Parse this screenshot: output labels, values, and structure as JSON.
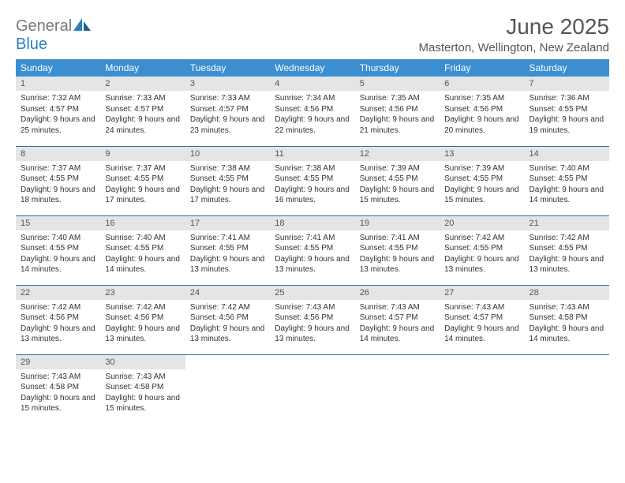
{
  "brand": {
    "part1": "General",
    "part2": "Blue"
  },
  "title": "June 2025",
  "location": "Masterton, Wellington, New Zealand",
  "colors": {
    "header_bg": "#3b8fd1",
    "header_text": "#ffffff",
    "daynum_bg": "#e5e5e5",
    "border": "#2a6fa5",
    "logo_gray": "#7a7a7a",
    "logo_blue": "#2a7fbf"
  },
  "days_of_week": [
    "Sunday",
    "Monday",
    "Tuesday",
    "Wednesday",
    "Thursday",
    "Friday",
    "Saturday"
  ],
  "weeks": [
    [
      {
        "n": "1",
        "sunrise": "7:32 AM",
        "sunset": "4:57 PM",
        "daylight": "9 hours and 25 minutes."
      },
      {
        "n": "2",
        "sunrise": "7:33 AM",
        "sunset": "4:57 PM",
        "daylight": "9 hours and 24 minutes."
      },
      {
        "n": "3",
        "sunrise": "7:33 AM",
        "sunset": "4:57 PM",
        "daylight": "9 hours and 23 minutes."
      },
      {
        "n": "4",
        "sunrise": "7:34 AM",
        "sunset": "4:56 PM",
        "daylight": "9 hours and 22 minutes."
      },
      {
        "n": "5",
        "sunrise": "7:35 AM",
        "sunset": "4:56 PM",
        "daylight": "9 hours and 21 minutes."
      },
      {
        "n": "6",
        "sunrise": "7:35 AM",
        "sunset": "4:56 PM",
        "daylight": "9 hours and 20 minutes."
      },
      {
        "n": "7",
        "sunrise": "7:36 AM",
        "sunset": "4:55 PM",
        "daylight": "9 hours and 19 minutes."
      }
    ],
    [
      {
        "n": "8",
        "sunrise": "7:37 AM",
        "sunset": "4:55 PM",
        "daylight": "9 hours and 18 minutes."
      },
      {
        "n": "9",
        "sunrise": "7:37 AM",
        "sunset": "4:55 PM",
        "daylight": "9 hours and 17 minutes."
      },
      {
        "n": "10",
        "sunrise": "7:38 AM",
        "sunset": "4:55 PM",
        "daylight": "9 hours and 17 minutes."
      },
      {
        "n": "11",
        "sunrise": "7:38 AM",
        "sunset": "4:55 PM",
        "daylight": "9 hours and 16 minutes."
      },
      {
        "n": "12",
        "sunrise": "7:39 AM",
        "sunset": "4:55 PM",
        "daylight": "9 hours and 15 minutes."
      },
      {
        "n": "13",
        "sunrise": "7:39 AM",
        "sunset": "4:55 PM",
        "daylight": "9 hours and 15 minutes."
      },
      {
        "n": "14",
        "sunrise": "7:40 AM",
        "sunset": "4:55 PM",
        "daylight": "9 hours and 14 minutes."
      }
    ],
    [
      {
        "n": "15",
        "sunrise": "7:40 AM",
        "sunset": "4:55 PM",
        "daylight": "9 hours and 14 minutes."
      },
      {
        "n": "16",
        "sunrise": "7:40 AM",
        "sunset": "4:55 PM",
        "daylight": "9 hours and 14 minutes."
      },
      {
        "n": "17",
        "sunrise": "7:41 AM",
        "sunset": "4:55 PM",
        "daylight": "9 hours and 13 minutes."
      },
      {
        "n": "18",
        "sunrise": "7:41 AM",
        "sunset": "4:55 PM",
        "daylight": "9 hours and 13 minutes."
      },
      {
        "n": "19",
        "sunrise": "7:41 AM",
        "sunset": "4:55 PM",
        "daylight": "9 hours and 13 minutes."
      },
      {
        "n": "20",
        "sunrise": "7:42 AM",
        "sunset": "4:55 PM",
        "daylight": "9 hours and 13 minutes."
      },
      {
        "n": "21",
        "sunrise": "7:42 AM",
        "sunset": "4:55 PM",
        "daylight": "9 hours and 13 minutes."
      }
    ],
    [
      {
        "n": "22",
        "sunrise": "7:42 AM",
        "sunset": "4:56 PM",
        "daylight": "9 hours and 13 minutes."
      },
      {
        "n": "23",
        "sunrise": "7:42 AM",
        "sunset": "4:56 PM",
        "daylight": "9 hours and 13 minutes."
      },
      {
        "n": "24",
        "sunrise": "7:42 AM",
        "sunset": "4:56 PM",
        "daylight": "9 hours and 13 minutes."
      },
      {
        "n": "25",
        "sunrise": "7:43 AM",
        "sunset": "4:56 PM",
        "daylight": "9 hours and 13 minutes."
      },
      {
        "n": "26",
        "sunrise": "7:43 AM",
        "sunset": "4:57 PM",
        "daylight": "9 hours and 14 minutes."
      },
      {
        "n": "27",
        "sunrise": "7:43 AM",
        "sunset": "4:57 PM",
        "daylight": "9 hours and 14 minutes."
      },
      {
        "n": "28",
        "sunrise": "7:43 AM",
        "sunset": "4:58 PM",
        "daylight": "9 hours and 14 minutes."
      }
    ],
    [
      {
        "n": "29",
        "sunrise": "7:43 AM",
        "sunset": "4:58 PM",
        "daylight": "9 hours and 15 minutes."
      },
      {
        "n": "30",
        "sunrise": "7:43 AM",
        "sunset": "4:58 PM",
        "daylight": "9 hours and 15 minutes."
      },
      null,
      null,
      null,
      null,
      null
    ]
  ],
  "labels": {
    "sunrise": "Sunrise: ",
    "sunset": "Sunset: ",
    "daylight": "Daylight: "
  }
}
